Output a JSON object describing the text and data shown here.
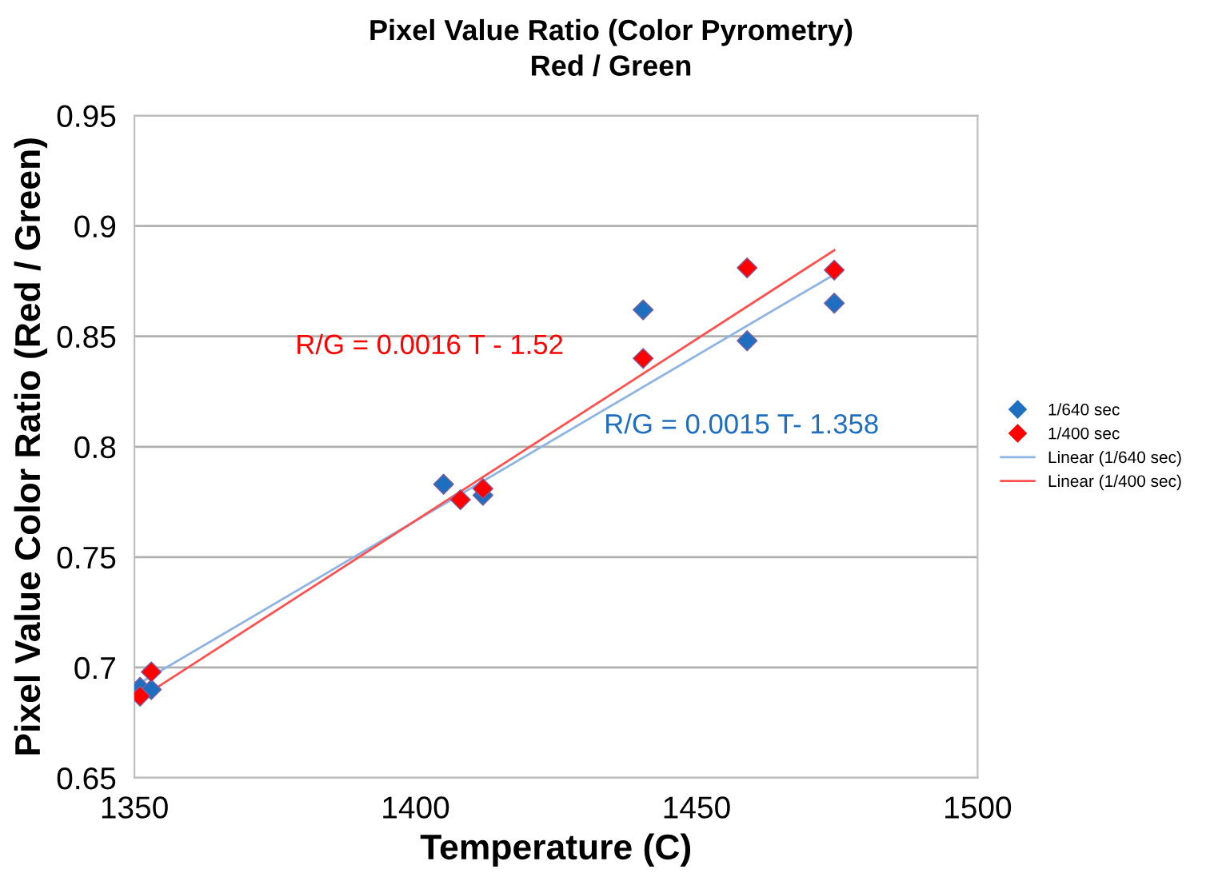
{
  "chart_data": {
    "type": "scatter",
    "title": "Pixel Value Ratio (Color Pyrometry)",
    "subtitle": "Red / Green",
    "xlabel": "Temperature (C)",
    "ylabel": "Pixel Value Color Ratio (Red / Green)",
    "annotations": [
      "R/G = 0.0016 T - 1.52",
      "R/G = 0.0015 T- 1.358"
    ],
    "series": [
      {
        "name": "1/640 sec",
        "color": "#1f6fc0",
        "marker": "diamond",
        "x": [
          1351,
          1353,
          1405,
          1412,
          1440.5,
          1459,
          1474.5
        ],
        "values": [
          0.691,
          0.69,
          0.783,
          0.778,
          0.862,
          0.848,
          0.865
        ]
      },
      {
        "name": "1/400 sec",
        "color": "#ff0000",
        "marker": "diamond",
        "x": [
          1351,
          1353,
          1408,
          1412,
          1440.5,
          1459,
          1474.5
        ],
        "values": [
          0.687,
          0.698,
          0.776,
          0.781,
          0.84,
          0.881,
          0.88
        ]
      },
      {
        "name": "Linear (1/640 sec)",
        "type": "line",
        "color": "#8eb4e3",
        "marker": "none",
        "x": [
          1351,
          1474.5
        ],
        "values": [
          0.693,
          0.878
        ]
      },
      {
        "name": "Linear (1/400 sec)",
        "type": "line",
        "color": "#ff5050",
        "marker": "none",
        "x": [
          1351,
          1474.5
        ],
        "values": [
          0.686,
          0.889
        ]
      }
    ],
    "xlim": [
      1350,
      1500
    ],
    "xticks": [
      1350,
      1400,
      1450,
      1500
    ],
    "ylim": [
      0.65,
      0.95
    ],
    "yticks": [
      0.65,
      0.7,
      0.75,
      0.8,
      0.85,
      0.9,
      0.95
    ],
    "grid": "y",
    "legend": "right"
  }
}
